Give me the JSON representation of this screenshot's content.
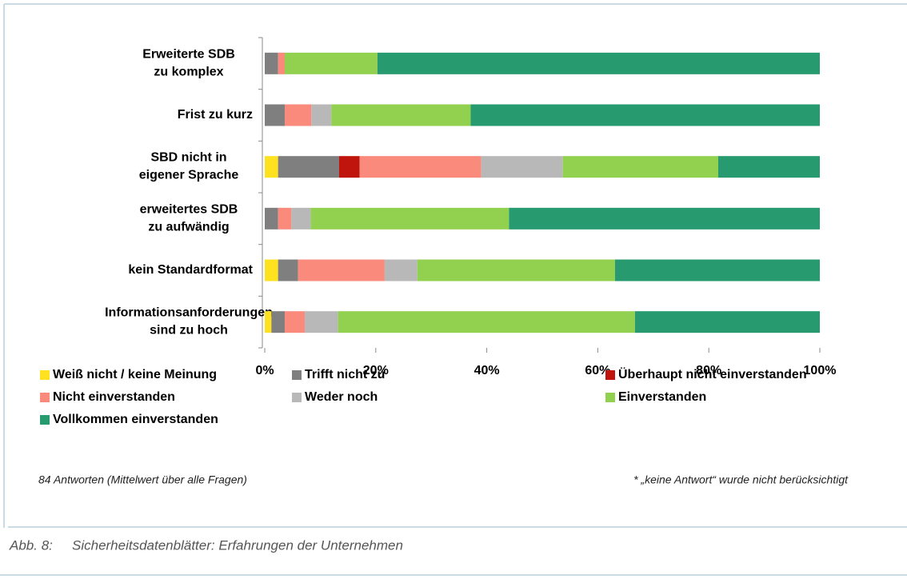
{
  "chart_data": {
    "type": "stacked_barh",
    "categories": [
      "Erweiterte SDB\nzu komplex",
      "Frist zu kurz",
      "SBD nicht in\neigener Sprache",
      "erweitertes SDB\nzu aufwändig",
      "kein Standardformat",
      "Informationsanforderungen\nsind zu hoch"
    ],
    "series": [
      {
        "name": "Weiß nicht / keine Meinung",
        "color": "#ffe21f",
        "values": [
          0,
          0,
          2.4,
          0,
          2.4,
          1.2
        ]
      },
      {
        "name": "Trifft nicht zu",
        "color": "#7f7f7f",
        "values": [
          2.4,
          3.6,
          11,
          2.4,
          3.6,
          2.4
        ]
      },
      {
        "name": "Überhaupt nicht einverstanden",
        "color": "#c0150c",
        "values": [
          0,
          0,
          3.7,
          0,
          0,
          0
        ]
      },
      {
        "name": "Nicht einverstanden",
        "color": "#fa8a7c",
        "values": [
          1.2,
          4.8,
          21.9,
          2.4,
          15.6,
          3.6
        ]
      },
      {
        "name": "Weder noch",
        "color": "#b8b8b8",
        "values": [
          0,
          3.6,
          14.7,
          3.5,
          5.9,
          6
        ]
      },
      {
        "name": "Einverstanden",
        "color": "#92d050",
        "values": [
          16.7,
          25.1,
          28,
          35.7,
          35.6,
          53.5
        ]
      },
      {
        "name": "Vollkommen einverstanden",
        "color": "#279a6f",
        "values": [
          79.7,
          62.9,
          18.3,
          56,
          36.9,
          33.3
        ]
      }
    ],
    "xlim": [
      0,
      100
    ],
    "xticks": [
      {
        "value": 0,
        "label": "0%"
      },
      {
        "value": 20,
        "label": "20%"
      },
      {
        "value": 40,
        "label": "40%"
      },
      {
        "value": 60,
        "label": "60%"
      },
      {
        "value": 80,
        "label": "80%"
      },
      {
        "value": 100,
        "label": "100%"
      }
    ],
    "note_left": "84 Antworten (Mittelwert über alle Fragen)",
    "note_right": "* „keine Antwort“ wurde nicht berücksichtigt",
    "figure_label": "Abb. 8:",
    "caption": "Sicherheitsdatenblätter: Erfahrungen der Unternehmen"
  }
}
